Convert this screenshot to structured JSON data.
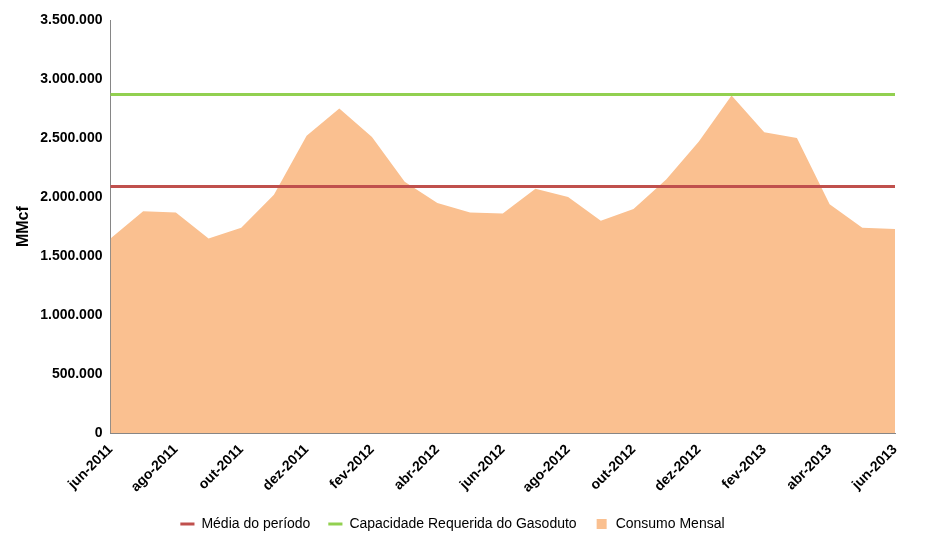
{
  "chart_data": {
    "type": "area",
    "y_label": "MMcf",
    "categories": [
      "jun-2011",
      null,
      "ago-2011",
      null,
      "out-2011",
      null,
      "dez-2011",
      null,
      "fev-2012",
      null,
      "abr-2012",
      null,
      "jun-2012",
      null,
      "ago-2012",
      null,
      "out-2012",
      null,
      "dez-2012",
      null,
      "fev-2013",
      null,
      "abr-2013",
      null,
      "jun-2013"
    ],
    "series": [
      {
        "name": "Consumo Mensal",
        "type": "area",
        "color": "#fac090",
        "values": [
          1650000,
          1880000,
          1870000,
          1650000,
          1740000,
          2020000,
          2520000,
          2750000,
          2510000,
          2130000,
          1950000,
          1870000,
          1860000,
          2070000,
          2000000,
          1800000,
          1900000,
          2150000,
          2470000,
          2860000,
          2550000,
          2500000,
          1940000,
          1740000,
          1730000
        ]
      },
      {
        "name": "Média do período",
        "type": "line",
        "color": "#c0504d",
        "values": [
          2090000,
          2090000,
          2090000,
          2090000,
          2090000,
          2090000,
          2090000,
          2090000,
          2090000,
          2090000,
          2090000,
          2090000,
          2090000,
          2090000,
          2090000,
          2090000,
          2090000,
          2090000,
          2090000,
          2090000,
          2090000,
          2090000,
          2090000,
          2090000,
          2090000
        ]
      },
      {
        "name": "Capacidade Requerida do Gasoduto",
        "type": "line",
        "color": "#92d050",
        "values": [
          2870000,
          2870000,
          2870000,
          2870000,
          2870000,
          2870000,
          2870000,
          2870000,
          2870000,
          2870000,
          2870000,
          2870000,
          2870000,
          2870000,
          2870000,
          2870000,
          2870000,
          2870000,
          2870000,
          2870000,
          2870000,
          2870000,
          2870000,
          2870000,
          2870000
        ]
      }
    ],
    "ylim": [
      0,
      3500000
    ],
    "yticks": [
      0,
      {
        "value": 500000,
        "label": "500.000"
      },
      {
        "value": 1000000,
        "label": "1.000.000"
      },
      {
        "value": 1500000,
        "label": "1.500.000"
      },
      {
        "value": 2000000,
        "label": "2.000.000"
      },
      {
        "value": 2500000,
        "label": "2.500.000"
      },
      {
        "value": 3000000,
        "label": "3.000.000"
      },
      {
        "value": 3500000,
        "label": "3.500.000"
      }
    ],
    "grid": false,
    "legend": "bottom"
  }
}
